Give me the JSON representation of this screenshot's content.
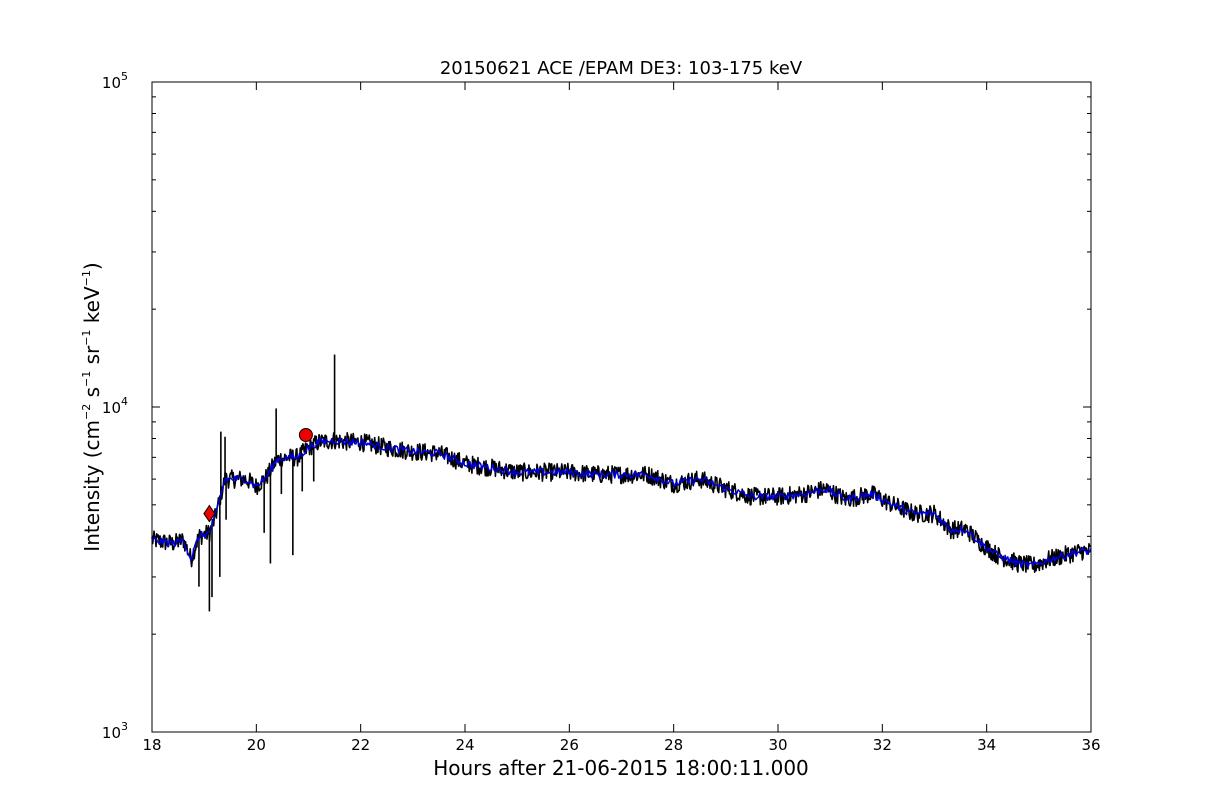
{
  "chart_data": {
    "type": "line",
    "title": "20150621 ACE /EPAM DE3: 103-175 keV",
    "xlabel": "Hours after 21-06-2015 18:00:11.000",
    "ylabel": {
      "main": "Intensity (cm",
      "exp1": "−2",
      "s": " s",
      "exp2": "−1",
      "sr": " sr",
      "exp3": "−1",
      "kev": " keV",
      "exp4": "−1",
      "close": ")"
    },
    "xlim": [
      18,
      36
    ],
    "ylim": [
      1000,
      100000
    ],
    "yscale": "log",
    "x_ticks": [
      "18",
      "20",
      "22",
      "24",
      "26",
      "28",
      "30",
      "32",
      "34",
      "36"
    ],
    "y_ticks": [
      {
        "base": "10",
        "exp": "3",
        "value": 1000
      },
      {
        "base": "10",
        "exp": "4",
        "value": 10000
      },
      {
        "base": "10",
        "exp": "5",
        "value": 100000
      }
    ],
    "grid": false,
    "series": [
      {
        "role": "raw",
        "color": "#000000",
        "x": [
          18.0,
          18.2,
          18.4,
          18.6,
          18.75,
          18.9,
          19.0,
          19.1,
          19.2,
          19.3,
          19.4,
          19.6,
          19.8,
          20.0,
          20.2,
          20.4,
          20.6,
          20.8,
          21.0,
          21.2,
          21.5,
          21.8,
          22.0,
          22.5,
          23.0,
          23.5,
          24.0,
          24.5,
          25.0,
          25.5,
          26.0,
          26.5,
          27.0,
          27.5,
          28.0,
          28.5,
          29.0,
          29.5,
          30.0,
          30.5,
          30.9,
          31.3,
          31.8,
          32.2,
          32.6,
          33.0,
          33.3,
          33.6,
          33.9,
          34.2,
          34.6,
          34.9,
          35.2,
          35.5,
          35.8,
          36.0
        ],
        "y": [
          3900,
          3850,
          3800,
          3900,
          3400,
          4000,
          4050,
          4100,
          4500,
          5200,
          6000,
          6000,
          6000,
          5700,
          6100,
          6900,
          7000,
          7000,
          7500,
          7800,
          7900,
          7800,
          7800,
          7500,
          7300,
          7200,
          6700,
          6500,
          6300,
          6300,
          6300,
          6200,
          6200,
          6200,
          5800,
          6000,
          5600,
          5300,
          5300,
          5400,
          5600,
          5200,
          5400,
          5000,
          4700,
          4700,
          4200,
          4200,
          3800,
          3500,
          3300,
          3250,
          3400,
          3500,
          3600,
          3600
        ]
      },
      {
        "role": "smoothed",
        "color": "#0000dd",
        "x": [
          18.0,
          18.2,
          18.4,
          18.6,
          18.75,
          18.9,
          19.0,
          19.1,
          19.2,
          19.3,
          19.4,
          19.6,
          19.8,
          20.0,
          20.2,
          20.4,
          20.6,
          20.8,
          21.0,
          21.2,
          21.5,
          21.8,
          22.0,
          22.5,
          23.0,
          23.5,
          24.0,
          24.5,
          25.0,
          25.5,
          26.0,
          26.5,
          27.0,
          27.5,
          28.0,
          28.5,
          29.0,
          29.5,
          30.0,
          30.5,
          30.9,
          31.3,
          31.8,
          32.2,
          32.6,
          33.0,
          33.3,
          33.6,
          33.9,
          34.2,
          34.6,
          34.9,
          35.2,
          35.5,
          35.8,
          36.0
        ],
        "y": [
          3900,
          3850,
          3800,
          3900,
          3400,
          4000,
          4050,
          4100,
          4500,
          5200,
          6000,
          6000,
          6000,
          5700,
          6100,
          6900,
          7000,
          7000,
          7500,
          7800,
          7900,
          7800,
          7800,
          7500,
          7300,
          7200,
          6700,
          6500,
          6300,
          6300,
          6300,
          6200,
          6200,
          6200,
          5800,
          6000,
          5600,
          5300,
          5300,
          5400,
          5600,
          5200,
          5400,
          5000,
          4700,
          4700,
          4200,
          4200,
          3800,
          3500,
          3300,
          3250,
          3400,
          3500,
          3600,
          3600
        ]
      }
    ],
    "spikes": [
      {
        "x": 18.9,
        "y": 2800
      },
      {
        "x": 19.1,
        "y": 2350
      },
      {
        "x": 19.15,
        "y": 2600
      },
      {
        "x": 19.32,
        "y": 8400
      },
      {
        "x": 19.3,
        "y": 3000
      },
      {
        "x": 19.4,
        "y": 8100
      },
      {
        "x": 19.42,
        "y": 4500
      },
      {
        "x": 20.15,
        "y": 4100
      },
      {
        "x": 20.27,
        "y": 3300
      },
      {
        "x": 20.38,
        "y": 9900
      },
      {
        "x": 20.48,
        "y": 5400
      },
      {
        "x": 20.7,
        "y": 3500
      },
      {
        "x": 20.88,
        "y": 5500
      },
      {
        "x": 21.1,
        "y": 5900
      },
      {
        "x": 21.5,
        "y": 14500
      }
    ],
    "markers": [
      {
        "shape": "diamond",
        "x": 19.1,
        "y": 4700,
        "color": "#ee0000"
      },
      {
        "shape": "circle",
        "x": 20.95,
        "y": 8200,
        "color": "#ee0000"
      }
    ]
  }
}
